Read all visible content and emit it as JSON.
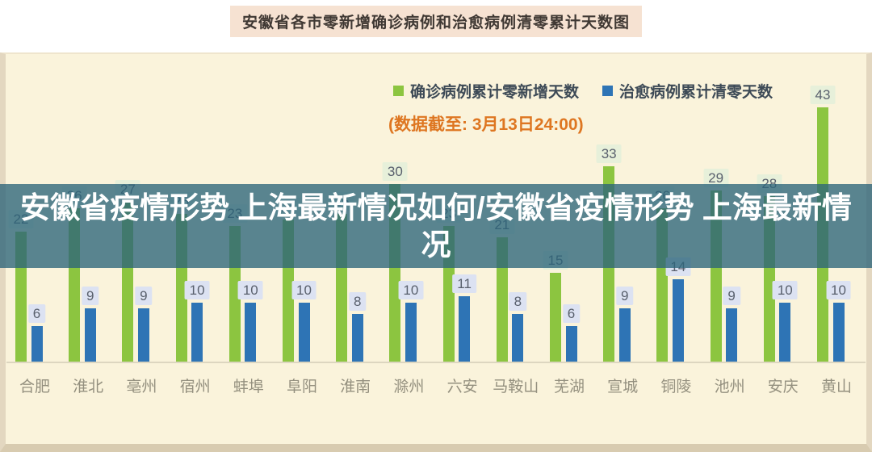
{
  "page_title": "安徽省各市零新增确诊病例和治愈病例清零累计天数图",
  "watermark": {
    "line1": "安徽省疫情形势 上海最新情况如何/安徽省疫情形势 上海最新情",
    "line2": "况"
  },
  "legend": {
    "confirmed_label": "确诊病例累计零新增天数",
    "cured_label": "治愈病例累计清零天数"
  },
  "data_note": "(数据截至: 3月13日24:00)",
  "colors": {
    "confirmed_bar": "#8cc540",
    "cured_bar": "#2e74b5",
    "panel_bg": "#faf3db",
    "frame": "#e3d7c0",
    "note_orange": "#de7621",
    "watermark_band": "rgba(44,100,122,0.78)",
    "title_pill_bg": "#f6e2d2"
  },
  "chart_data": {
    "type": "bar",
    "title": "安徽省各市零新增确诊病例和治愈病例清零累计天数图",
    "note": "(数据截至: 3月13日24:00)",
    "categories": [
      "合肥",
      "淮北",
      "亳州",
      "宿州",
      "蚌埠",
      "阜阳",
      "淮南",
      "滁州",
      "六安",
      "马鞍山",
      "芜湖",
      "宣城",
      "铜陵",
      "池州",
      "安庆",
      "黄山"
    ],
    "series": [
      {
        "name": "确诊病例累计零新增天数",
        "color": "#8cc540",
        "values": [
          22,
          26,
          27,
          25,
          23,
          24,
          25,
          30,
          23,
          21,
          15,
          33,
          26,
          29,
          28,
          43
        ]
      },
      {
        "name": "治愈病例累计清零天数",
        "color": "#2e74b5",
        "values": [
          6,
          9,
          9,
          10,
          10,
          10,
          8,
          10,
          11,
          8,
          6,
          9,
          14,
          9,
          10,
          10
        ]
      }
    ],
    "xlabel": "",
    "ylabel": "",
    "ylim": [
      0,
      45
    ],
    "grid": false,
    "legend_position": "top",
    "value_labels": true
  }
}
